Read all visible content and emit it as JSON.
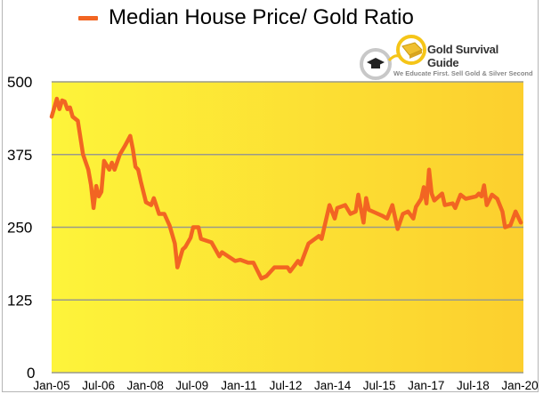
{
  "chart_data": {
    "type": "line",
    "title": "Median House Price/ Gold Ratio",
    "xlabel": "",
    "ylabel": "",
    "ylim": [
      0,
      500
    ],
    "yticks": [
      "0",
      "125",
      "250",
      "375",
      "500"
    ],
    "xlim": [
      "2005-01",
      "2020-01"
    ],
    "xticks": [
      "Jan-05",
      "Jul-06",
      "Jan-08",
      "Jul-09",
      "Jan-11",
      "Jul-12",
      "Jan-14",
      "Jul-15",
      "Jan-17",
      "Jul-18",
      "Jan-20"
    ],
    "grid": true,
    "legend": "top-left",
    "colors": {
      "line": "#F26522",
      "background_left": "#FDF43A",
      "background_right": "#FCCF2E",
      "grid": "#9a9a8a"
    },
    "series": [
      {
        "name": "Median House Price/ Gold Ratio",
        "x": [
          "2005-01",
          "2005-03",
          "2005-04",
          "2005-05",
          "2005-06",
          "2005-07",
          "2005-08",
          "2005-09",
          "2005-11",
          "2006-01",
          "2006-03",
          "2006-04",
          "2006-05",
          "2006-06",
          "2006-07",
          "2006-08",
          "2006-09",
          "2006-11",
          "2006-12",
          "2007-01",
          "2007-03",
          "2007-05",
          "2007-07",
          "2007-08",
          "2007-09",
          "2007-10",
          "2007-11",
          "2008-01",
          "2008-03",
          "2008-04",
          "2008-06",
          "2008-08",
          "2008-10",
          "2008-12",
          "2009-01",
          "2009-03",
          "2009-04",
          "2009-06",
          "2009-07",
          "2009-09",
          "2009-10",
          "2010-02",
          "2010-05",
          "2010-06",
          "2010-11",
          "2011-01",
          "2011-04",
          "2011-06",
          "2011-09",
          "2011-11",
          "2012-02",
          "2012-07",
          "2012-08",
          "2012-11",
          "2012-12",
          "2013-03",
          "2013-07",
          "2013-08",
          "2013-11",
          "2014-01",
          "2014-02",
          "2014-05",
          "2014-07",
          "2014-09",
          "2014-10",
          "2014-12",
          "2015-01",
          "2015-02",
          "2015-04",
          "2015-07",
          "2015-09",
          "2015-11",
          "2016-01",
          "2016-03",
          "2016-05",
          "2016-07",
          "2016-08",
          "2016-10",
          "2016-11",
          "2016-12",
          "2017-01",
          "2017-02",
          "2017-03",
          "2017-06",
          "2017-07",
          "2017-10",
          "2017-11",
          "2018-01",
          "2018-03",
          "2018-07",
          "2018-08",
          "2018-09",
          "2018-10",
          "2018-11",
          "2019-01",
          "2019-03",
          "2019-05",
          "2019-06",
          "2019-08",
          "2019-10",
          "2019-12"
        ],
        "y": [
          440,
          471,
          453,
          468,
          466,
          453,
          456,
          440,
          433,
          375,
          349,
          323,
          283,
          321,
          303,
          311,
          364,
          349,
          361,
          349,
          375,
          390,
          407,
          384,
          354,
          349,
          329,
          293,
          288,
          300,
          273,
          273,
          253,
          222,
          181,
          212,
          216,
          232,
          250,
          250,
          230,
          224,
          200,
          207,
          192,
          194,
          189,
          189,
          162,
          166,
          181,
          181,
          174,
          192,
          186,
          222,
          235,
          230,
          288,
          265,
          283,
          288,
          273,
          277,
          306,
          258,
          300,
          280,
          276,
          270,
          265,
          288,
          247,
          273,
          277,
          265,
          285,
          299,
          319,
          291,
          349,
          308,
          296,
          308,
          288,
          291,
          283,
          306,
          299,
          303,
          308,
          303,
          322,
          288,
          306,
          299,
          277,
          250,
          253,
          277,
          258
        ]
      }
    ]
  },
  "logo": {
    "name": "Gold Survival Guide",
    "tagline": "We Educate First. Sell Gold & Silver Second"
  }
}
